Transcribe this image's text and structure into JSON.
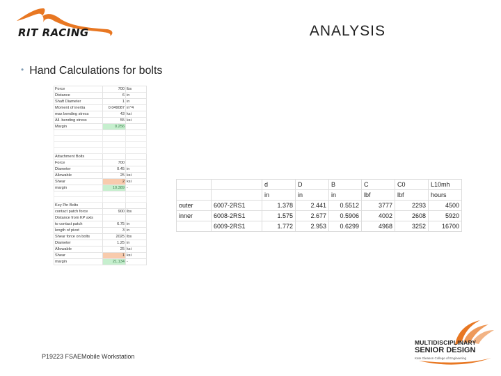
{
  "logo": {
    "text": "RIT RACING",
    "accent": "#e87722"
  },
  "title": "ANALYSIS",
  "bullet": "Hand Calculations for bolts",
  "sheet": {
    "rows": [
      [
        "Force",
        "700",
        "lbs"
      ],
      [
        "Distance",
        "6",
        "in"
      ],
      [
        "Shaft Diameter",
        "1",
        "in"
      ],
      [
        "Moment of inertia",
        "0.049087",
        "in^4"
      ],
      [
        "max bending stress",
        "43",
        "ksi"
      ],
      [
        "All. bending stress",
        "55",
        "ksi"
      ],
      [
        "Margin",
        "0.256",
        ""
      ],
      [
        "",
        "",
        ""
      ],
      [
        "",
        "",
        ""
      ],
      [
        "",
        "",
        ""
      ],
      [
        "",
        "",
        ""
      ],
      [
        "Attachment Bolts",
        "",
        ""
      ],
      [
        "Force",
        "700",
        ""
      ],
      [
        "Diameter",
        "0.45",
        "in"
      ],
      [
        "Allowable",
        "25",
        "ksi"
      ],
      [
        "Shear",
        "2",
        "ksi"
      ],
      [
        "margin",
        "10.389",
        "-"
      ],
      [
        "",
        "",
        ""
      ],
      [
        "",
        "",
        ""
      ],
      [
        "Key Pin Bolts",
        "",
        ""
      ],
      [
        "contact patch force",
        "900",
        "lbs"
      ],
      [
        "Distance from KP axis",
        "",
        ""
      ],
      [
        "to contact patch",
        "6.75",
        "in"
      ],
      [
        "length of pivot",
        "3",
        "in"
      ],
      [
        "Shear force on bolts",
        "2025",
        "lbs"
      ],
      [
        "Diameter",
        "1.25",
        "in"
      ],
      [
        "Allowable",
        "25",
        "ksi"
      ],
      [
        "Shear",
        "1",
        "ksi"
      ],
      [
        "margin",
        "21.134",
        "-"
      ]
    ],
    "green_rows": [
      6,
      16,
      28
    ],
    "red_rows": [
      15,
      27
    ]
  },
  "bearing": {
    "header": [
      "",
      "",
      "d",
      "D",
      "B",
      "C",
      "C0",
      "L10mh"
    ],
    "units": [
      "",
      "",
      "in",
      "in",
      "in",
      "lbf",
      "lbf",
      "hours"
    ],
    "rows": [
      [
        "outer",
        "6007-2RS1",
        "1.378",
        "2.441",
        "0.5512",
        "3777",
        "2293",
        "4500"
      ],
      [
        "inner",
        "6008-2RS1",
        "1.575",
        "2.677",
        "0.5906",
        "4002",
        "2608",
        "5920"
      ],
      [
        "",
        "6009-2RS1",
        "1.772",
        "2.953",
        "0.6299",
        "4968",
        "3252",
        "16700"
      ]
    ]
  },
  "footer": "P19223 FSAEMobile Workstation",
  "msd": {
    "line1": "MULTIDISCIPLINARY",
    "line2": "SENIOR DESIGN",
    "line3": "Kate Gleason College of Engineering",
    "accent": "#e87722"
  }
}
